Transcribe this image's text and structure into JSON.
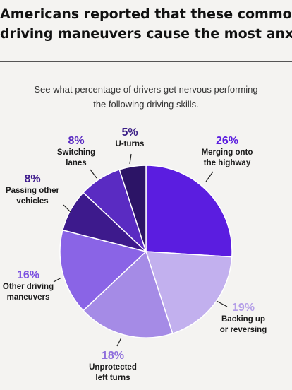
{
  "title_lines": [
    "Americans reported that these common",
    "driving maneuvers cause the most anxiety"
  ],
  "subtitle_lines": [
    "See what percentage of drivers get nervous performing",
    "the following driving skills."
  ],
  "chart_data": {
    "type": "pie",
    "title": "Americans reported that these common driving maneuvers cause the most anxiety",
    "slices": [
      {
        "pct_label": "26%",
        "value": 26,
        "name_lines": [
          "Merging onto",
          "the highway"
        ],
        "color": "#5b1de0",
        "label_color": "#5b1de0"
      },
      {
        "pct_label": "19%",
        "value": 19,
        "name_lines": [
          "Backing up",
          "or reversing"
        ],
        "color": "#c2b0ee",
        "label_color": "#b49ee8"
      },
      {
        "pct_label": "18%",
        "value": 18,
        "name_lines": [
          "Unprotected",
          "left turns"
        ],
        "color": "#a58be6",
        "label_color": "#8f6fdc"
      },
      {
        "pct_label": "16%",
        "value": 16,
        "name_lines": [
          "Other driving",
          "maneuvers"
        ],
        "color": "#8a64e6",
        "label_color": "#7a4fe0"
      },
      {
        "pct_label": "8%",
        "value": 8,
        "name_lines": [
          "Passing other",
          "vehicles"
        ],
        "color": "#3d1a8c",
        "label_color": "#3d1a8c"
      },
      {
        "pct_label": "8%",
        "value": 8,
        "name_lines": [
          "Switching",
          "lanes"
        ],
        "color": "#5a2bc2",
        "label_color": "#5a2bc2"
      },
      {
        "pct_label": "5%",
        "value": 5,
        "name_lines": [
          "U-turns"
        ],
        "color": "#2c1466",
        "label_color": "#3a1d86"
      }
    ]
  }
}
